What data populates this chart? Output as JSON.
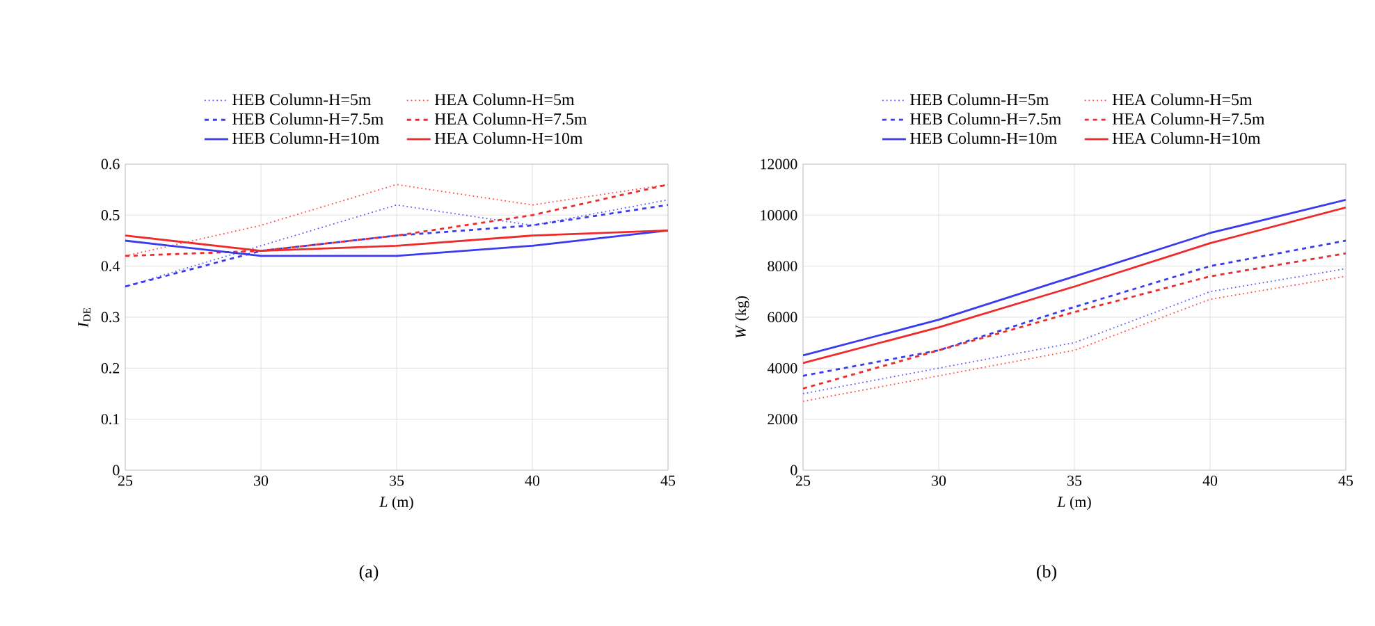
{
  "chart_data": [
    {
      "type": "line",
      "x": [
        25,
        30,
        35,
        40,
        45
      ],
      "xlim": [
        25,
        45
      ],
      "xticks": [
        25,
        30,
        35,
        40,
        45
      ],
      "ylim": [
        0,
        0.6
      ],
      "yticks": [
        0,
        0.1,
        0.2,
        0.3,
        0.4,
        0.5,
        0.6
      ],
      "xlabel": "*L* (m)",
      "ylabel": "*I*$_{DE}$",
      "grid": true,
      "legend": "top",
      "annotations": [
        "(a)"
      ],
      "series": [
        {
          "name": "HEB Column-H=5m",
          "color": "#5a5aff",
          "line_style": "dotted",
          "values": [
            0.36,
            0.44,
            0.52,
            0.48,
            0.53
          ]
        },
        {
          "name": "HEA Column-H=5m",
          "color": "#ff4a4a",
          "line_style": "dotted",
          "values": [
            0.42,
            0.48,
            0.56,
            0.52,
            0.56
          ]
        },
        {
          "name": "HEB Column-H=7.5m",
          "color": "#3a3aee",
          "line_style": "dashed",
          "values": [
            0.36,
            0.43,
            0.46,
            0.48,
            0.52
          ]
        },
        {
          "name": "HEA Column-H=7.5m",
          "color": "#ee2a2a",
          "line_style": "dashed",
          "values": [
            0.42,
            0.43,
            0.46,
            0.5,
            0.56
          ]
        },
        {
          "name": "HEB Column-H=10m",
          "color": "#3a3aee",
          "line_style": "solid",
          "values": [
            0.45,
            0.42,
            0.42,
            0.44,
            0.47
          ]
        },
        {
          "name": "HEA Column-H=10m",
          "color": "#ee2a2a",
          "line_style": "solid",
          "values": [
            0.46,
            0.43,
            0.44,
            0.46,
            0.47
          ]
        }
      ]
    },
    {
      "type": "line",
      "x": [
        25,
        30,
        35,
        40,
        45
      ],
      "xlim": [
        25,
        45
      ],
      "xticks": [
        25,
        30,
        35,
        40,
        45
      ],
      "ylim": [
        0,
        12000
      ],
      "yticks": [
        0,
        2000,
        4000,
        6000,
        8000,
        10000,
        12000
      ],
      "xlabel": "*L* (m)",
      "ylabel": "*W* (kg)",
      "grid": true,
      "legend": "top",
      "annotations": [
        "(b)"
      ],
      "series": [
        {
          "name": "HEB Column-H=5m",
          "color": "#5a5aff",
          "line_style": "dotted",
          "values": [
            3000,
            4000,
            5000,
            7000,
            7900
          ]
        },
        {
          "name": "HEA Column-H=5m",
          "color": "#ff4a4a",
          "line_style": "dotted",
          "values": [
            2700,
            3700,
            4700,
            6700,
            7600
          ]
        },
        {
          "name": "HEB Column-H=7.5m",
          "color": "#3a3aee",
          "line_style": "dashed",
          "values": [
            3700,
            4700,
            6400,
            8000,
            9000
          ]
        },
        {
          "name": "HEA Column-H=7.5m",
          "color": "#ee2a2a",
          "line_style": "dashed",
          "values": [
            3200,
            4700,
            6200,
            7600,
            8500
          ]
        },
        {
          "name": "HEB Column-H=10m",
          "color": "#3a3aee",
          "line_style": "solid",
          "values": [
            4500,
            5900,
            7600,
            9300,
            10600
          ]
        },
        {
          "name": "HEA Column-H=10m",
          "color": "#ee2a2a",
          "line_style": "solid",
          "values": [
            4200,
            5600,
            7200,
            8900,
            10300
          ]
        }
      ]
    }
  ]
}
